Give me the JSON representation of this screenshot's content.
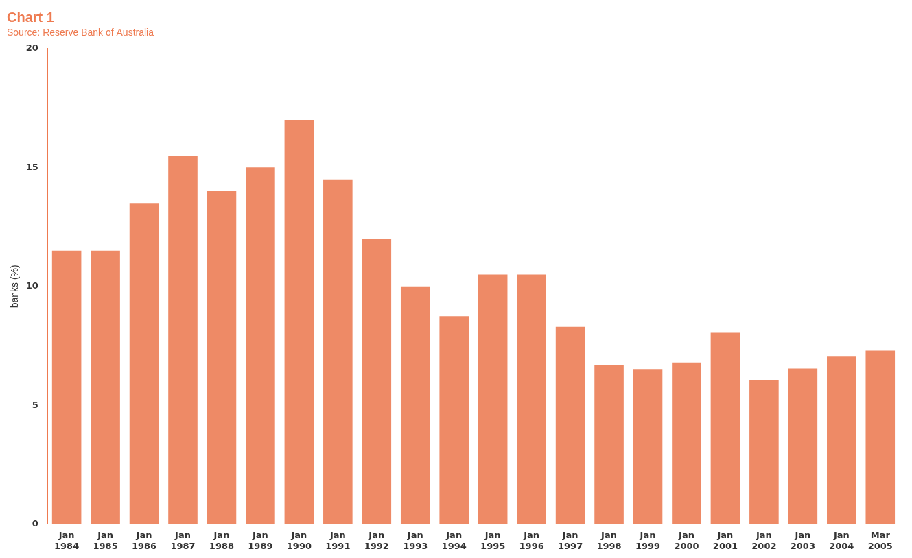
{
  "chart_data": {
    "type": "bar",
    "title": "Chart 1",
    "subtitle": "Source: Reserve Bank of Australia",
    "y_label": "banks (%)",
    "categories": [
      "Jan 1984",
      "Jan 1985",
      "Jan 1986",
      "Jan 1987",
      "Jan 1988",
      "Jan 1989",
      "Jan 1990",
      "Jan 1991",
      "Jan 1992",
      "Jan 1993",
      "Jan 1994",
      "Jan 1995",
      "Jan 1996",
      "Jan 1997",
      "Jan 1998",
      "Jan 1999",
      "Jan 2000",
      "Jan 2001",
      "Jan 2002",
      "Jan 2003",
      "Jan 2004",
      "Mar 2005"
    ],
    "values": [
      11.5,
      11.5,
      13.5,
      15.5,
      14.0,
      15.0,
      17.0,
      14.5,
      12.0,
      10.0,
      8.75,
      10.5,
      10.5,
      8.3,
      6.7,
      6.5,
      6.8,
      8.05,
      6.05,
      6.55,
      7.05,
      7.3
    ],
    "color": "#ee8a66",
    "ylim": [
      0,
      20
    ],
    "yticks": [
      0,
      5,
      10,
      15,
      20
    ],
    "grid": false
  }
}
